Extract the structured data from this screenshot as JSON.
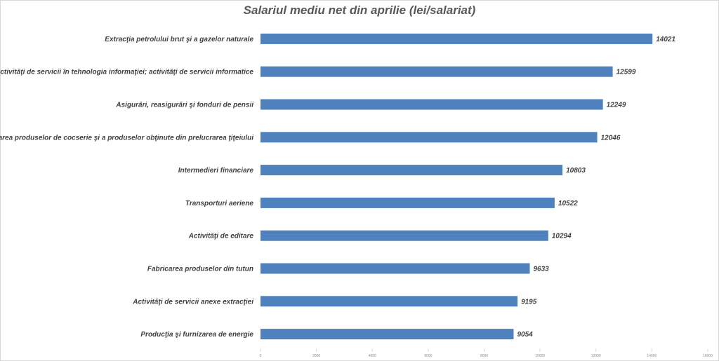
{
  "chart_data": {
    "type": "bar",
    "orientation": "horizontal",
    "title": "Salariul mediu net din aprilie (lei/salariat)",
    "categories": [
      "Extracţia petrolului brut şi a gazelor naturale",
      "Activităţi de servicii în tehnologia informaţiei; activităţi de servicii informatice",
      "Asigurări, reasigurări şi fonduri de pensii",
      "Fabricarea produselor de cocserie şi a produselor obţinute din prelucrarea ţiţeiului",
      "Intermedieri financiare",
      "Transporturi aeriene",
      "Activităţi de editare",
      "Fabricarea produselor din tutun",
      "Activităţi de servicii anexe extracţiei",
      "Producţia şi furnizarea de energie"
    ],
    "values": [
      14021,
      12599,
      12249,
      12046,
      10803,
      10522,
      10294,
      9633,
      9195,
      9054
    ],
    "xlim": [
      0,
      16000
    ],
    "xticks": [
      0,
      2000,
      4000,
      6000,
      8000,
      10000,
      12000,
      14000,
      16000
    ],
    "xlabel": "",
    "ylabel": "",
    "grid": false,
    "legend": "none",
    "bar_color": "#4f81bd"
  }
}
